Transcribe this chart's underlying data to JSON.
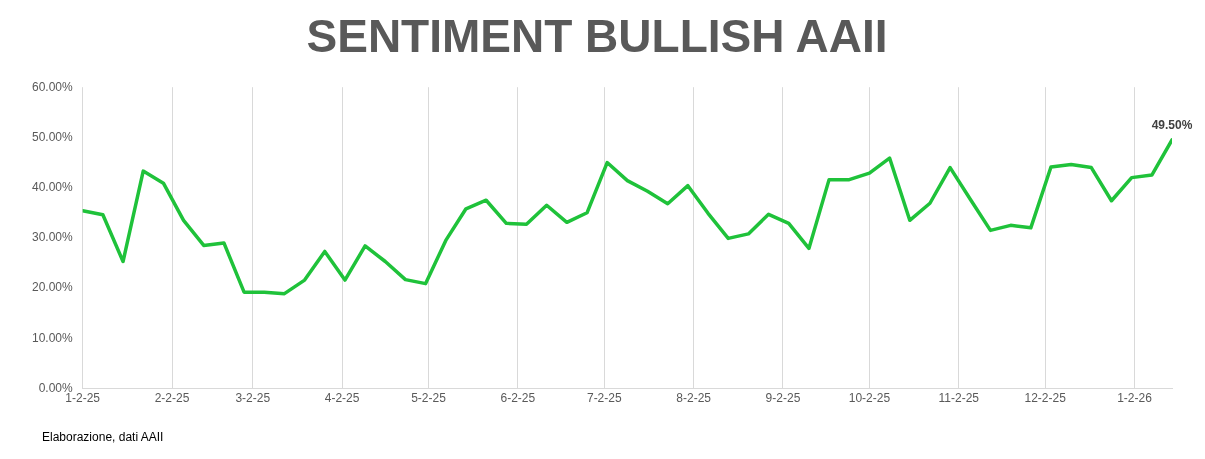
{
  "chart_data": {
    "type": "line",
    "title": "SENTIMENT BULLISH AAII",
    "x": [
      "2025-01-02",
      "2025-01-09",
      "2025-01-16",
      "2025-01-23",
      "2025-01-30",
      "2025-02-06",
      "2025-02-13",
      "2025-02-20",
      "2025-02-27",
      "2025-03-06",
      "2025-03-13",
      "2025-03-20",
      "2025-03-27",
      "2025-04-03",
      "2025-04-10",
      "2025-04-17",
      "2025-04-24",
      "2025-05-01",
      "2025-05-08",
      "2025-05-15",
      "2025-05-22",
      "2025-05-29",
      "2025-06-05",
      "2025-06-12",
      "2025-06-19",
      "2025-06-26",
      "2025-07-03",
      "2025-07-10",
      "2025-07-17",
      "2025-07-24",
      "2025-07-31",
      "2025-08-07",
      "2025-08-14",
      "2025-08-21",
      "2025-08-28",
      "2025-09-04",
      "2025-09-11",
      "2025-09-18",
      "2025-09-25",
      "2025-10-02",
      "2025-10-09",
      "2025-10-16",
      "2025-10-23",
      "2025-10-30",
      "2025-11-06",
      "2025-11-13",
      "2025-11-20",
      "2025-11-27",
      "2025-12-04",
      "2025-12-11",
      "2025-12-18",
      "2025-12-25",
      "2026-01-01",
      "2026-01-08",
      "2026-01-15"
    ],
    "series": [
      {
        "color": "#1fc23a",
        "values": [
          35.4,
          34.6,
          25.3,
          43.3,
          40.9,
          33.5,
          28.5,
          29.0,
          19.2,
          19.2,
          18.9,
          21.6,
          27.3,
          21.6,
          28.4,
          25.3,
          21.7,
          20.9,
          29.5,
          35.8,
          37.5,
          32.9,
          32.7,
          36.5,
          33.1,
          35.0,
          45.0,
          41.4,
          39.3,
          36.8,
          40.4,
          34.9,
          29.9,
          30.8,
          34.7,
          32.9,
          27.9,
          41.6,
          41.6,
          42.9,
          45.9,
          33.5,
          36.9,
          44.0,
          37.7,
          31.5,
          32.5,
          32.0,
          44.1,
          44.6,
          44.0,
          37.4,
          42.0,
          42.5,
          49.5
        ],
        "value_labels": [
          null,
          null,
          null,
          null,
          null,
          null,
          null,
          null,
          null,
          null,
          null,
          null,
          null,
          null,
          null,
          null,
          null,
          null,
          null,
          null,
          null,
          null,
          null,
          null,
          null,
          null,
          null,
          null,
          null,
          null,
          null,
          null,
          null,
          null,
          null,
          null,
          null,
          null,
          null,
          null,
          null,
          null,
          null,
          null,
          null,
          null,
          null,
          null,
          null,
          null,
          null,
          null,
          null,
          null,
          "49.50%"
        ]
      }
    ],
    "xlim": [
      "2025-01-02",
      "2026-01-15"
    ],
    "xticks": [
      {
        "value": "2025-01-02",
        "label": "1-2-25"
      },
      {
        "value": "2025-02-02",
        "label": "2-2-25"
      },
      {
        "value": "2025-03-02",
        "label": "3-2-25"
      },
      {
        "value": "2025-04-02",
        "label": "4-2-25"
      },
      {
        "value": "2025-05-02",
        "label": "5-2-25"
      },
      {
        "value": "2025-06-02",
        "label": "6-2-25"
      },
      {
        "value": "2025-07-02",
        "label": "7-2-25"
      },
      {
        "value": "2025-08-02",
        "label": "8-2-25"
      },
      {
        "value": "2025-09-02",
        "label": "9-2-25"
      },
      {
        "value": "2025-10-02",
        "label": "10-2-25"
      },
      {
        "value": "2025-11-02",
        "label": "11-2-25"
      },
      {
        "value": "2025-12-02",
        "label": "12-2-25"
      },
      {
        "value": "2026-01-02",
        "label": "1-2-26"
      }
    ],
    "ylim": [
      0,
      60
    ],
    "yticks": [
      {
        "value": 0,
        "label": "0.00%"
      },
      {
        "value": 10,
        "label": "10.00%"
      },
      {
        "value": 20,
        "label": "20.00%"
      },
      {
        "value": 30,
        "label": "30.00%"
      },
      {
        "value": 40,
        "label": "40.00%"
      },
      {
        "value": 50,
        "label": "50.00%"
      },
      {
        "value": 60,
        "label": "60.00%"
      }
    ],
    "grid": "x",
    "marker": "none",
    "line_style": "solid",
    "annotations": [
      "Elaborazione, dati AAII"
    ]
  }
}
